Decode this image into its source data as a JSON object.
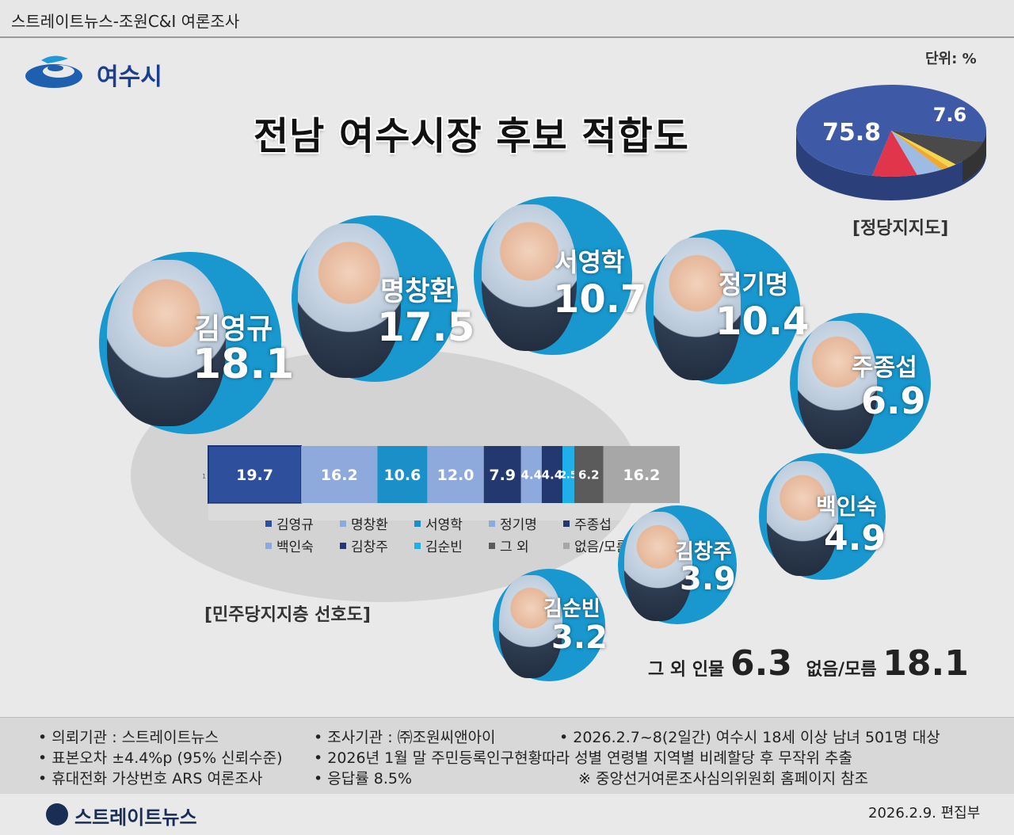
{
  "header": {
    "text": "스트레이트뉴스-조원C&I 여론조사"
  },
  "logo": {
    "text": "여수시",
    "icon": "yeosu-city-logo"
  },
  "unit": "단위: %",
  "title": "전남 여수시장 후보 적합도",
  "candidates": [
    {
      "name": "김영규",
      "value": "18.1"
    },
    {
      "name": "명창환",
      "value": "17.5"
    },
    {
      "name": "서영학",
      "value": "10.7"
    },
    {
      "name": "정기명",
      "value": "10.4"
    },
    {
      "name": "주종섭",
      "value": "6.9"
    },
    {
      "name": "백인숙",
      "value": "4.9"
    },
    {
      "name": "김창주",
      "value": "3.9"
    },
    {
      "name": "김순빈",
      "value": "3.2"
    }
  ],
  "others": {
    "label": "그 외 인물",
    "value": "6.3",
    "unknown_label": "없음/모름",
    "unknown_value": "18.1"
  },
  "pie_caption": "[정당지지도]",
  "bar_caption": "[민주당지지층  선호도]",
  "bar_axis_tick": "1",
  "colors": {
    "accent": "#1898cf",
    "dark_blue": "#2e4f9c",
    "light_blue": "#8ea9db",
    "teal": "#1a8fc8",
    "navy": "#22386f",
    "cyan": "#1fb0ec",
    "gray_dark": "#5b5b5b",
    "gray_light": "#a7a7a7",
    "pie_blue": "#3e59a6",
    "pie_red": "#e0354b"
  },
  "chart_data": [
    {
      "type": "pie",
      "title": "[정당지지도]",
      "slices": [
        {
          "value": 75.8,
          "label": "75.8",
          "color": "#3e59a6"
        },
        {
          "value": 7.6,
          "label": "7.6",
          "color": "#e0354b"
        },
        {
          "value": 4.5,
          "label": "",
          "color": "#9dbbe3"
        },
        {
          "value": 1.5,
          "label": "",
          "color": "#f0a830"
        },
        {
          "value": 1.5,
          "label": "",
          "color": "#f5d64a"
        },
        {
          "value": 9.1,
          "label": "",
          "color": "#4a4a4a"
        }
      ]
    },
    {
      "type": "bar",
      "orientation": "horizontal-stacked",
      "title": "[민주당지지층  선호도]",
      "categories": [
        "김영규",
        "명창환",
        "서영학",
        "정기명",
        "주종섭",
        "백인숙",
        "김창주",
        "김순빈",
        "그 외",
        "없음/모름"
      ],
      "values": [
        19.7,
        16.2,
        10.6,
        12.0,
        7.9,
        4.4,
        4.4,
        2.5,
        6.2,
        16.2
      ],
      "labels": [
        "19.7",
        "16.2",
        "10.6",
        "12.0",
        "7.9",
        "4.4",
        "4.4",
        "2.5",
        "6.2",
        "16.2"
      ],
      "colors": [
        "#2e4f9c",
        "#8ea9db",
        "#1a8fc8",
        "#8ea9db",
        "#22386f",
        "#8ea9db",
        "#22386f",
        "#1fb0ec",
        "#5b5b5b",
        "#a7a7a7"
      ],
      "legend": {
        "position": "bottom"
      }
    }
  ],
  "footer": {
    "col1": [
      "• 의뢰기관 : 스트레이트뉴스",
      "• 표본오차 ±4.4%p (95% 신뢰수준)",
      "• 휴대전화 가상번호 ARS 여론조사"
    ],
    "col2": [
      "• 조사기관 : ㈜조원씨앤아이",
      "• 2026년 1월 말 주민등록인구현황따라 성별 연령별 지역별 비례할당 후 무작위 추출",
      "• 응답률 8.5%"
    ],
    "col3": [
      "• 2026.2.7~8(2일간) 여수시 18세 이상 남녀 501명 대상",
      "※ 중앙선거여론조사심의위원회 홈페이지 참조"
    ],
    "brand": "스트레이트뉴스",
    "date": "2026.2.9. 편집부"
  }
}
